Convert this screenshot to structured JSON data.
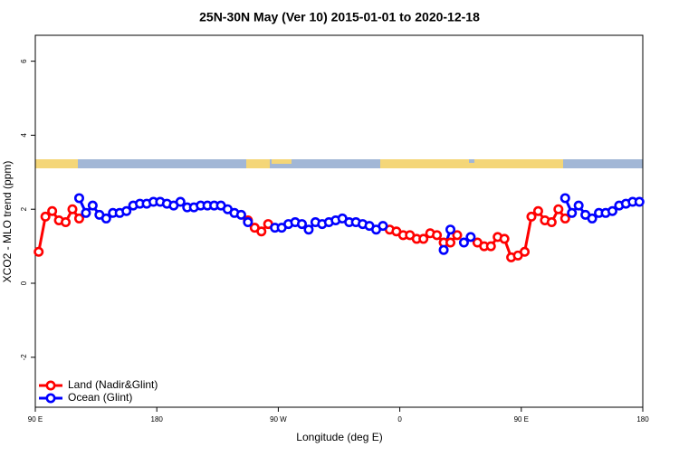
{
  "chart_data": {
    "type": "line",
    "title": "25N-30N May (Ver 10)   2015-01-01 to 2020-12-18",
    "x_label": "Longitude (deg E)",
    "y_label": "XCO2 - MLO trend (ppm)",
    "x": [
      92.5,
      97.5,
      102.5,
      107.5,
      112.5,
      117.5,
      122.5,
      127.5,
      132.5,
      137.5,
      142.5,
      147.5,
      152.5,
      157.5,
      162.5,
      167.5,
      172.5,
      177.5,
      182.5,
      187.5,
      192.5,
      197.5,
      202.5,
      207.5,
      212.5,
      217.5,
      222.5,
      227.5,
      232.5,
      237.5,
      242.5,
      247.5,
      252.5,
      257.5,
      262.5,
      267.5,
      272.5,
      277.5,
      282.5,
      287.5,
      292.5,
      297.5,
      302.5,
      307.5,
      312.5,
      317.5,
      322.5,
      327.5,
      332.5,
      337.5,
      342.5,
      347.5,
      352.5,
      357.5,
      362.5,
      367.5,
      372.5,
      377.5,
      382.5,
      387.5,
      392.5,
      397.5,
      402.5,
      407.5,
      412.5,
      417.5,
      422.5,
      427.5,
      432.5,
      437.5,
      442.5,
      447.5,
      452.5,
      457.5,
      462.5,
      467.5,
      472.5,
      477.5,
      482.5,
      487.5,
      492.5,
      497.5,
      502.5,
      507.5,
      512.5,
      517.5,
      522.5,
      527.5,
      532.5,
      537.5
    ],
    "series": [
      {
        "name": "Land (Nadir&Glint)",
        "color": "#ff0000",
        "values": [
          0.85,
          1.8,
          1.95,
          1.7,
          1.65,
          2.0,
          1.75,
          null,
          null,
          null,
          null,
          null,
          null,
          null,
          null,
          null,
          null,
          null,
          null,
          null,
          null,
          null,
          null,
          null,
          null,
          null,
          null,
          null,
          null,
          null,
          null,
          1.7,
          1.5,
          1.4,
          1.6,
          null,
          null,
          null,
          null,
          null,
          null,
          null,
          null,
          null,
          null,
          null,
          null,
          null,
          null,
          null,
          null,
          null,
          1.45,
          1.4,
          1.3,
          1.3,
          1.2,
          1.2,
          1.35,
          1.3,
          1.1,
          1.1,
          1.3,
          null,
          null,
          1.1,
          1.0,
          1.0,
          1.25,
          1.2,
          0.7,
          0.75,
          0.85,
          1.8,
          1.95,
          1.7,
          1.65,
          2.0,
          1.75,
          null,
          null,
          null,
          null,
          null,
          null,
          null,
          null,
          null,
          null,
          null
        ]
      },
      {
        "name": "Ocean (Glint)",
        "color": "#0000ff",
        "values": [
          null,
          null,
          null,
          null,
          null,
          null,
          2.3,
          1.9,
          2.1,
          1.85,
          1.75,
          1.9,
          1.9,
          1.95,
          2.1,
          2.15,
          2.15,
          2.2,
          2.2,
          2.15,
          2.1,
          2.2,
          2.05,
          2.05,
          2.1,
          2.1,
          2.1,
          2.1,
          2.0,
          1.9,
          1.85,
          1.65,
          null,
          null,
          null,
          1.5,
          1.5,
          1.6,
          1.65,
          1.6,
          1.45,
          1.65,
          1.6,
          1.65,
          1.7,
          1.75,
          1.65,
          1.65,
          1.6,
          1.55,
          1.45,
          1.55,
          null,
          null,
          null,
          null,
          null,
          null,
          null,
          null,
          0.9,
          1.45,
          null,
          1.1,
          1.25,
          null,
          null,
          null,
          null,
          null,
          null,
          null,
          null,
          null,
          null,
          null,
          null,
          null,
          2.3,
          1.9,
          2.1,
          1.85,
          1.75,
          1.9,
          1.9,
          1.95,
          2.1,
          2.15,
          2.2,
          2.2
        ]
      }
    ],
    "xlim": [
      90,
      540
    ],
    "xticks": [
      {
        "value": 90,
        "label": "90 E"
      },
      180,
      {
        "value": 270,
        "label": "90 W"
      },
      {
        "value": 360,
        "label": "0"
      },
      {
        "value": 450,
        "label": "90 E"
      },
      {
        "value": 540,
        "label": "180"
      }
    ],
    "ylim": [
      -3.35,
      6.7
    ],
    "yticks": [
      -2,
      0,
      2,
      4,
      6
    ],
    "legend": "bottom-left"
  }
}
